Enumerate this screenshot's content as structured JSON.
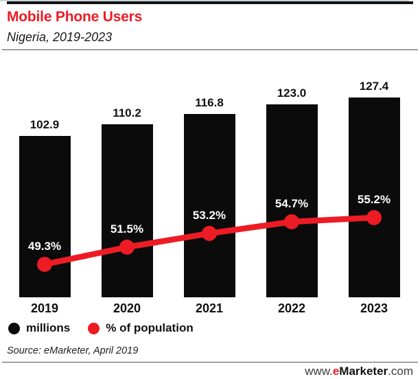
{
  "header": {
    "title": "Mobile Phone Users",
    "subtitle": "Nigeria, 2019-2023"
  },
  "chart_data": {
    "type": "bar",
    "title": "Mobile Phone Users",
    "subtitle": "Nigeria, 2019-2023",
    "categories": [
      "2019",
      "2020",
      "2021",
      "2022",
      "2023"
    ],
    "series": [
      {
        "name": "millions",
        "type": "bar",
        "color": "#0b0b0b",
        "values": [
          102.9,
          110.2,
          116.8,
          123.0,
          127.4
        ],
        "value_labels": [
          "102.9",
          "110.2",
          "116.8",
          "123.0",
          "127.4"
        ]
      },
      {
        "name": "% of population",
        "type": "line",
        "color": "#ed1c24",
        "values": [
          49.3,
          51.5,
          53.2,
          54.7,
          55.2
        ],
        "value_labels": [
          "49.3%",
          "51.5%",
          "53.2%",
          "54.7%",
          "55.2%"
        ]
      }
    ],
    "xlabel": "",
    "ylabel": "",
    "grid": false,
    "legend_position": "bottom-left"
  },
  "legend": {
    "items": [
      {
        "label": "millions",
        "color": "#0b0b0b"
      },
      {
        "label": "% of population",
        "color": "#ed1c24"
      }
    ]
  },
  "source": "Source: eMarketer, April 2019",
  "footer": {
    "prefix": "www.",
    "brand_e": "e",
    "brand_rest": "Marketer",
    "suffix": ".com"
  },
  "colors": {
    "accent_red": "#ed1c24",
    "bar_black": "#0b0b0b",
    "baseline_gray": "#c9d2d9"
  }
}
